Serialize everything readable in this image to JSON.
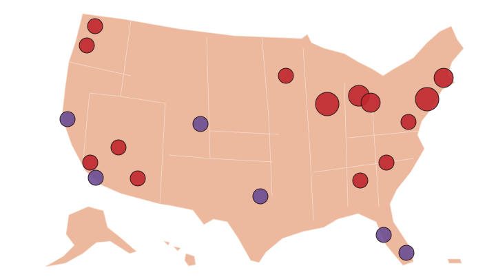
{
  "map": {
    "series": [
      {
        "color": "#c0272d",
        "values": [
          1,
          1,
          1,
          1,
          1,
          1,
          2.4,
          1.9,
          1.6,
          2.4,
          1.6,
          1,
          1,
          1
        ]
      },
      {
        "color": "#6b4c93",
        "values": [
          1,
          1,
          1,
          1,
          1,
          1
        ]
      }
    ]
  }
}
